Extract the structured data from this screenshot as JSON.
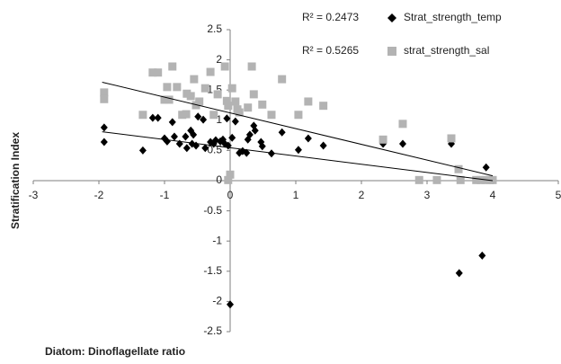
{
  "chart_data": {
    "type": "scatter",
    "x_label": "Diatom: Dinoflagellate ratio",
    "y_label": "Stratification Index",
    "xlim": [
      -3,
      5
    ],
    "ylim": [
      -2.5,
      2.5
    ],
    "xticks": [
      -3,
      -2,
      -1,
      0,
      1,
      2,
      3,
      4,
      5
    ],
    "yticks": [
      2.5,
      2,
      1.5,
      1,
      0.5,
      0,
      -0.5,
      -1,
      -1.5,
      -2,
      -2.5
    ],
    "series": [
      {
        "name": "Strat_strength_temp",
        "r_squared": "R² = 0.2473",
        "color": "#000000",
        "marker": "diamond",
        "x": [
          -1.92,
          -1.92,
          -1.33,
          -1.18,
          -1.1,
          -1.0,
          -0.96,
          -0.88,
          -0.85,
          -0.77,
          -0.68,
          -0.66,
          -0.6,
          -0.58,
          -0.56,
          -0.52,
          -0.49,
          -0.41,
          -0.38,
          -0.3,
          -0.25,
          -0.22,
          -0.15,
          -0.11,
          -0.08,
          -0.03,
          0,
          -0.05,
          0.03,
          0.08,
          0.14,
          0.19,
          0.25,
          0.27,
          0.3,
          0.36,
          0.38,
          0.47,
          0.49,
          0.63,
          0.79,
          1.04,
          1.19,
          1.42,
          2.33,
          2.63,
          3.37,
          3.49,
          3.84,
          3.9,
          3.96
        ],
        "values": [
          0.88,
          0.64,
          0.5,
          1.04,
          1.04,
          0.7,
          0.65,
          0.97,
          0.73,
          0.61,
          0.73,
          0.54,
          0.83,
          0.61,
          0.76,
          0.58,
          1.06,
          1.01,
          0.54,
          0.64,
          0.61,
          0.67,
          0.65,
          0.68,
          0.61,
          0.58,
          -2.05,
          1.03,
          0.71,
          0.98,
          0.46,
          0.49,
          0.46,
          0.68,
          0.76,
          0.91,
          0.83,
          0.64,
          0.57,
          0.45,
          0.8,
          0.51,
          0.7,
          0.58,
          0.61,
          0.61,
          0.61,
          -1.53,
          -1.24,
          0.22,
          0.01
        ],
        "trendline": {
          "x": [
            -1.95,
            4
          ],
          "y": [
            0.81,
            0.0
          ]
        }
      },
      {
        "name": "strat_strength_sal",
        "r_squared": "R² = 0.5265",
        "color": "#b3b3b3",
        "marker": "square",
        "x": [
          -1.92,
          -1.92,
          -1.33,
          -1.18,
          -1.1,
          -1.0,
          -0.96,
          -0.93,
          -0.88,
          -0.81,
          -0.73,
          -0.67,
          -0.66,
          -0.6,
          -0.55,
          -0.52,
          -0.47,
          -0.38,
          -0.3,
          -0.25,
          -0.19,
          -0.08,
          -0.05,
          -0.03,
          0,
          -0.03,
          0.03,
          0.08,
          0.11,
          0.14,
          0.27,
          0.33,
          0.36,
          0.49,
          0.63,
          0.79,
          1.04,
          1.19,
          1.42,
          2.33,
          2.63,
          2.88,
          3.15,
          3.37,
          3.48,
          3.51,
          3.75,
          3.82,
          3.89,
          3.96,
          4
        ],
        "values": [
          1.46,
          1.35,
          1.09,
          1.79,
          1.79,
          1.34,
          1.55,
          1.34,
          1.89,
          1.55,
          1.09,
          1.1,
          1.44,
          1.4,
          1.68,
          1.25,
          1.31,
          1.53,
          1.8,
          1.09,
          1.43,
          1.89,
          1.32,
          1.24,
          0.1,
          0.01,
          1.53,
          1.31,
          1.18,
          1.13,
          1.21,
          1.89,
          1.43,
          1.26,
          1.09,
          1.68,
          1.09,
          1.31,
          1.24,
          0.68,
          0.94,
          0.01,
          0.01,
          0.7,
          0.19,
          0.01,
          0.01,
          0.01,
          0.01,
          0.01,
          0.01
        ],
        "trendline": {
          "x": [
            -1.95,
            4
          ],
          "y": [
            1.63,
            0.08
          ]
        }
      }
    ]
  }
}
